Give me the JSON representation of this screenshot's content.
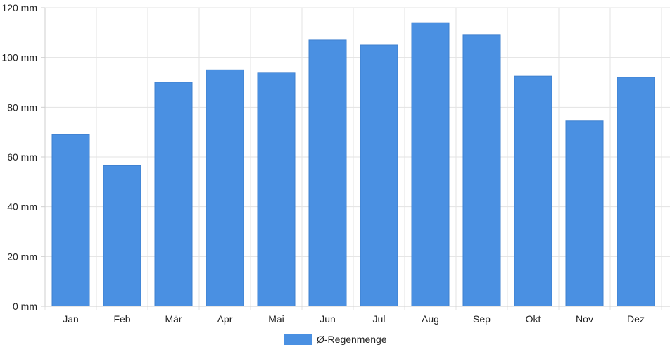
{
  "chart_data": {
    "type": "bar",
    "categories": [
      "Jan",
      "Feb",
      "Mär",
      "Apr",
      "Mai",
      "Jun",
      "Jul",
      "Aug",
      "Sep",
      "Okt",
      "Nov",
      "Dez"
    ],
    "series": [
      {
        "name": "Ø-Regenmenge",
        "color": "#4a90e2",
        "values": [
          69,
          56.5,
          90,
          95,
          94,
          107,
          105,
          114,
          109,
          92.5,
          74.5,
          92
        ]
      }
    ],
    "ylim": [
      0,
      120
    ],
    "yticks": [
      0,
      20,
      40,
      60,
      80,
      100,
      120
    ],
    "ytick_labels": [
      "0 mm",
      "20 mm",
      "40 mm",
      "60 mm",
      "80 mm",
      "100 mm",
      "120 mm"
    ],
    "grid": true,
    "legend_position": "bottom-center"
  }
}
